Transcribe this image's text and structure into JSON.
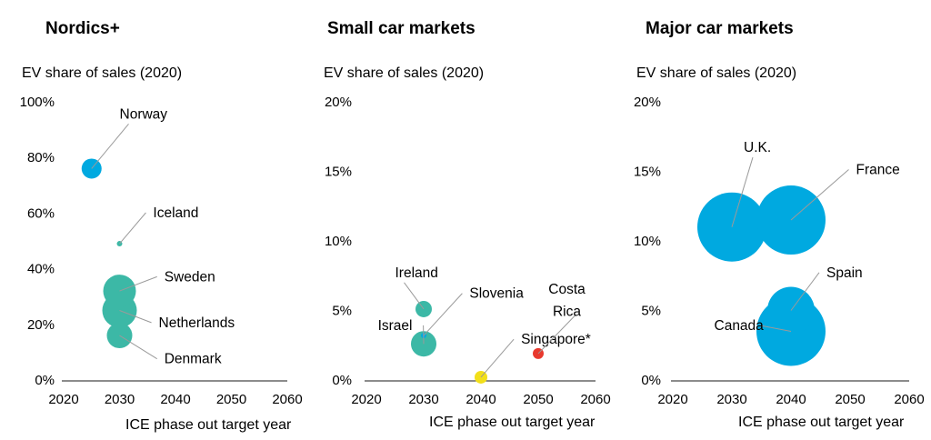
{
  "colors": {
    "blue": "#00a9e0",
    "teal": "#3cb8a6",
    "yellow": "#f2df1a",
    "red": "#e8392e",
    "leader": "#9a9a9a"
  },
  "chart_data": [
    {
      "type": "scatter",
      "variant": "bubble",
      "title": "Nordics+",
      "ylabel": "EV share of sales (2020)",
      "xlabel": "ICE phase out target year",
      "xlim": [
        2020,
        2060
      ],
      "ylim": [
        0,
        100
      ],
      "x_ticks": [
        2020,
        2030,
        2040,
        2050,
        2060
      ],
      "y_ticks": [
        0,
        20,
        40,
        60,
        80,
        100
      ],
      "y_tick_labels": [
        "0%",
        "20%",
        "40%",
        "60%",
        "80%",
        "100%"
      ],
      "grid": false,
      "points": [
        {
          "label": "Norway",
          "x": 2025,
          "y": 76,
          "size": 11,
          "color": "blue",
          "label_x": 2030,
          "label_y": 94
        },
        {
          "label": "Iceland",
          "x": 2030,
          "y": 49,
          "size": 3,
          "color": "teal",
          "label_x": 2036,
          "label_y": 58.5
        },
        {
          "label": "Sweden",
          "x": 2030,
          "y": 32,
          "size": 18,
          "color": "teal",
          "label_x": 2038,
          "label_y": 35.5
        },
        {
          "label": "Netherlands",
          "x": 2030,
          "y": 25,
          "size": 19,
          "color": "teal",
          "label_x": 2037,
          "label_y": 19
        },
        {
          "label": "Denmark",
          "x": 2030,
          "y": 16,
          "size": 14,
          "color": "teal",
          "label_x": 2038,
          "label_y": 6
        }
      ]
    },
    {
      "type": "scatter",
      "variant": "bubble",
      "title": "Small car markets",
      "ylabel": "EV share of sales (2020)",
      "xlabel": "ICE phase out target year",
      "xlim": [
        2020,
        2060
      ],
      "ylim": [
        0,
        20
      ],
      "x_ticks": [
        2020,
        2030,
        2040,
        2050,
        2060
      ],
      "y_ticks": [
        0,
        5,
        10,
        15,
        20
      ],
      "y_tick_labels": [
        "0%",
        "5%",
        "10%",
        "15%",
        "20%"
      ],
      "grid": false,
      "points": [
        {
          "label": "Ireland",
          "x": 2030,
          "y": 5.1,
          "size": 9,
          "color": "teal",
          "label_x": 2025,
          "label_y": 7.4
        },
        {
          "label": "Slovenia",
          "x": 2030,
          "y": 3.2,
          "size": 3,
          "color": "blue",
          "label_x": 2038,
          "label_y": 5.9
        },
        {
          "label": "Israel",
          "x": 2030,
          "y": 2.6,
          "size": 14,
          "color": "teal",
          "label_x": 2022,
          "label_y": 3.6
        },
        {
          "label": "Singapore*",
          "x": 2040,
          "y": 0.2,
          "size": 7,
          "color": "yellow",
          "label_x": 2047,
          "label_y": 2.6
        },
        {
          "label": "Costa Rica",
          "x": 2050,
          "y": 1.9,
          "size": 6,
          "color": "red",
          "label_x": 2055,
          "label_y": 5.1
        }
      ],
      "extra_labels": [
        {
          "text": "Costa",
          "x": 2055,
          "y": 6.2
        },
        {
          "text": "Rica",
          "x": 2055,
          "y": 4.6
        }
      ]
    },
    {
      "type": "scatter",
      "variant": "bubble",
      "title": "Major car markets",
      "ylabel": "EV share of sales (2020)",
      "xlabel": "ICE phase out target year",
      "xlim": [
        2020,
        2060
      ],
      "ylim": [
        0,
        20
      ],
      "x_ticks": [
        2020,
        2030,
        2040,
        2050,
        2060
      ],
      "y_ticks": [
        0,
        5,
        10,
        15,
        20
      ],
      "y_tick_labels": [
        "0%",
        "5%",
        "10%",
        "15%",
        "20%"
      ],
      "grid": false,
      "points": [
        {
          "label": "U.K.",
          "x": 2030,
          "y": 11,
          "size": 38,
          "color": "blue",
          "label_x": 2032,
          "label_y": 16.4
        },
        {
          "label": "France",
          "x": 2040,
          "y": 11.5,
          "size": 38,
          "color": "blue",
          "label_x": 2051,
          "label_y": 14.8
        },
        {
          "label": "Spain",
          "x": 2040,
          "y": 5,
          "size": 26,
          "color": "blue",
          "label_x": 2046,
          "label_y": 7.4
        },
        {
          "label": "Canada",
          "x": 2040,
          "y": 3.5,
          "size": 38,
          "color": "blue",
          "label_x": 2027,
          "label_y": 3.6
        }
      ]
    }
  ]
}
